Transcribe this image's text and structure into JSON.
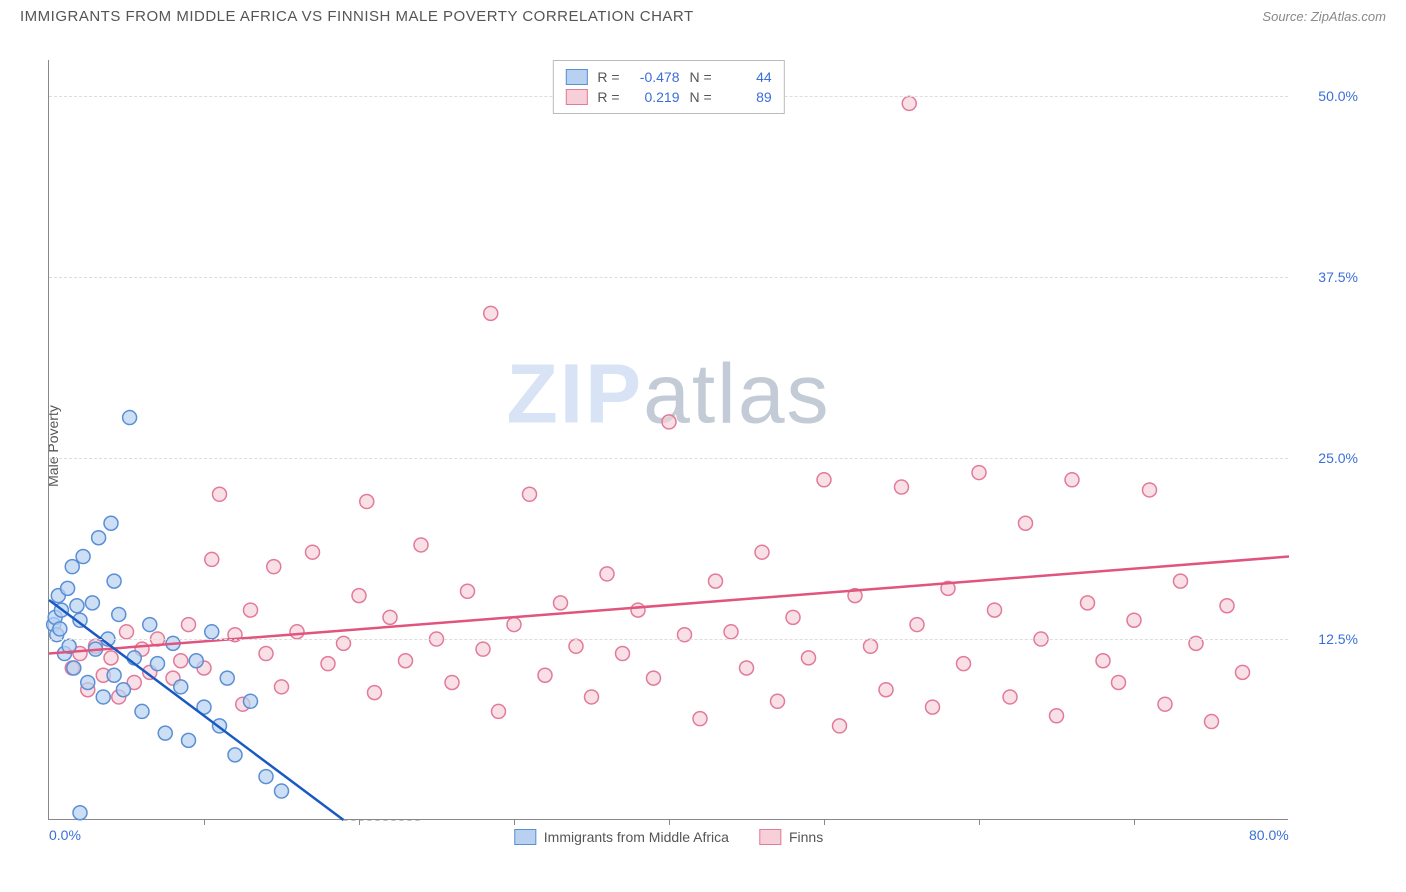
{
  "header": {
    "title": "IMMIGRANTS FROM MIDDLE AFRICA VS FINNISH MALE POVERTY CORRELATION CHART",
    "source_label": "Source:",
    "source_name": "ZipAtlas.com"
  },
  "watermark": {
    "part1": "ZIP",
    "part2": "atlas"
  },
  "chart": {
    "type": "scatter",
    "ylabel": "Male Poverty",
    "xlim": [
      0,
      80
    ],
    "ylim": [
      0,
      52.5
    ],
    "xtick_labels": {
      "0": "0.0%",
      "80": "80.0%"
    },
    "xtick_marks": [
      10,
      20,
      30,
      40,
      50,
      60,
      70
    ],
    "ytick_labels": {
      "12.5": "12.5%",
      "25": "25.0%",
      "37.5": "37.5%",
      "50": "50.0%"
    },
    "grid_color": "#dddddd",
    "axis_color": "#888888",
    "background_color": "#ffffff",
    "series": {
      "immigrants": {
        "label": "Immigrants from Middle Africa",
        "r_value": "-0.478",
        "n_value": "44",
        "marker_fill": "#b8d1f0",
        "marker_stroke": "#5a8fd6",
        "marker_opacity": 0.7,
        "line_color": "#1959c4",
        "line": {
          "x1": 0,
          "y1": 15.2,
          "x2": 19,
          "y2": 0
        },
        "points": [
          [
            0.3,
            13.5
          ],
          [
            0.4,
            14.0
          ],
          [
            0.5,
            12.8
          ],
          [
            0.6,
            15.5
          ],
          [
            0.7,
            13.2
          ],
          [
            0.8,
            14.5
          ],
          [
            1.0,
            11.5
          ],
          [
            1.2,
            16.0
          ],
          [
            1.3,
            12.0
          ],
          [
            1.5,
            17.5
          ],
          [
            1.6,
            10.5
          ],
          [
            1.8,
            14.8
          ],
          [
            2.0,
            13.8
          ],
          [
            2.2,
            18.2
          ],
          [
            2.5,
            9.5
          ],
          [
            2.8,
            15.0
          ],
          [
            3.0,
            11.8
          ],
          [
            3.2,
            19.5
          ],
          [
            3.5,
            8.5
          ],
          [
            3.8,
            12.5
          ],
          [
            4.0,
            20.5
          ],
          [
            4.2,
            10.0
          ],
          [
            4.5,
            14.2
          ],
          [
            4.8,
            9.0
          ],
          [
            5.2,
            27.8
          ],
          [
            5.5,
            11.2
          ],
          [
            6.0,
            7.5
          ],
          [
            6.5,
            13.5
          ],
          [
            7.0,
            10.8
          ],
          [
            7.5,
            6.0
          ],
          [
            8.0,
            12.2
          ],
          [
            8.5,
            9.2
          ],
          [
            9.0,
            5.5
          ],
          [
            9.5,
            11.0
          ],
          [
            10.0,
            7.8
          ],
          [
            10.5,
            13.0
          ],
          [
            11.0,
            6.5
          ],
          [
            11.5,
            9.8
          ],
          [
            12.0,
            4.5
          ],
          [
            13.0,
            8.2
          ],
          [
            14.0,
            3.0
          ],
          [
            15.0,
            2.0
          ],
          [
            2.0,
            0.5
          ],
          [
            4.2,
            16.5
          ]
        ]
      },
      "finns": {
        "label": "Finns",
        "r_value": "0.219",
        "n_value": "89",
        "marker_fill": "#f6cfd9",
        "marker_stroke": "#e27a9a",
        "marker_opacity": 0.65,
        "line_color": "#e0547e",
        "line": {
          "x1": 0,
          "y1": 11.5,
          "x2": 80,
          "y2": 18.2
        },
        "points": [
          [
            1.5,
            10.5
          ],
          [
            2.0,
            11.5
          ],
          [
            2.5,
            9.0
          ],
          [
            3.0,
            12.0
          ],
          [
            3.5,
            10.0
          ],
          [
            4.0,
            11.2
          ],
          [
            4.5,
            8.5
          ],
          [
            5.0,
            13.0
          ],
          [
            5.5,
            9.5
          ],
          [
            6.0,
            11.8
          ],
          [
            6.5,
            10.2
          ],
          [
            7.0,
            12.5
          ],
          [
            8.0,
            9.8
          ],
          [
            8.5,
            11.0
          ],
          [
            9.0,
            13.5
          ],
          [
            10.0,
            10.5
          ],
          [
            10.5,
            18.0
          ],
          [
            11.0,
            22.5
          ],
          [
            12.0,
            12.8
          ],
          [
            12.5,
            8.0
          ],
          [
            13.0,
            14.5
          ],
          [
            14.0,
            11.5
          ],
          [
            14.5,
            17.5
          ],
          [
            15.0,
            9.2
          ],
          [
            16.0,
            13.0
          ],
          [
            17.0,
            18.5
          ],
          [
            18.0,
            10.8
          ],
          [
            19.0,
            12.2
          ],
          [
            20.0,
            15.5
          ],
          [
            20.5,
            22.0
          ],
          [
            21.0,
            8.8
          ],
          [
            22.0,
            14.0
          ],
          [
            23.0,
            11.0
          ],
          [
            24.0,
            19.0
          ],
          [
            25.0,
            12.5
          ],
          [
            26.0,
            9.5
          ],
          [
            27.0,
            15.8
          ],
          [
            28.0,
            11.8
          ],
          [
            28.5,
            35.0
          ],
          [
            29.0,
            7.5
          ],
          [
            30.0,
            13.5
          ],
          [
            31.0,
            22.5
          ],
          [
            32.0,
            10.0
          ],
          [
            33.0,
            15.0
          ],
          [
            34.0,
            12.0
          ],
          [
            35.0,
            8.5
          ],
          [
            36.0,
            17.0
          ],
          [
            37.0,
            11.5
          ],
          [
            38.0,
            14.5
          ],
          [
            39.0,
            9.8
          ],
          [
            40.0,
            27.5
          ],
          [
            41.0,
            12.8
          ],
          [
            42.0,
            7.0
          ],
          [
            43.0,
            16.5
          ],
          [
            44.0,
            13.0
          ],
          [
            45.0,
            10.5
          ],
          [
            46.0,
            18.5
          ],
          [
            47.0,
            8.2
          ],
          [
            48.0,
            14.0
          ],
          [
            49.0,
            11.2
          ],
          [
            50.0,
            23.5
          ],
          [
            51.0,
            6.5
          ],
          [
            52.0,
            15.5
          ],
          [
            53.0,
            12.0
          ],
          [
            54.0,
            9.0
          ],
          [
            55.0,
            23.0
          ],
          [
            55.5,
            49.5
          ],
          [
            56.0,
            13.5
          ],
          [
            57.0,
            7.8
          ],
          [
            58.0,
            16.0
          ],
          [
            59.0,
            10.8
          ],
          [
            60.0,
            24.0
          ],
          [
            61.0,
            14.5
          ],
          [
            62.0,
            8.5
          ],
          [
            63.0,
            20.5
          ],
          [
            64.0,
            12.5
          ],
          [
            65.0,
            7.2
          ],
          [
            66.0,
            23.5
          ],
          [
            67.0,
            15.0
          ],
          [
            68.0,
            11.0
          ],
          [
            69.0,
            9.5
          ],
          [
            70.0,
            13.8
          ],
          [
            71.0,
            22.8
          ],
          [
            72.0,
            8.0
          ],
          [
            73.0,
            16.5
          ],
          [
            74.0,
            12.2
          ],
          [
            75.0,
            6.8
          ],
          [
            76.0,
            14.8
          ],
          [
            77.0,
            10.2
          ]
        ]
      }
    }
  },
  "legend_top": {
    "r_label": "R =",
    "n_label": "N ="
  },
  "colors": {
    "text_main": "#555555",
    "text_axis": "#3b6fd8",
    "watermark": "#d8e3f5"
  }
}
